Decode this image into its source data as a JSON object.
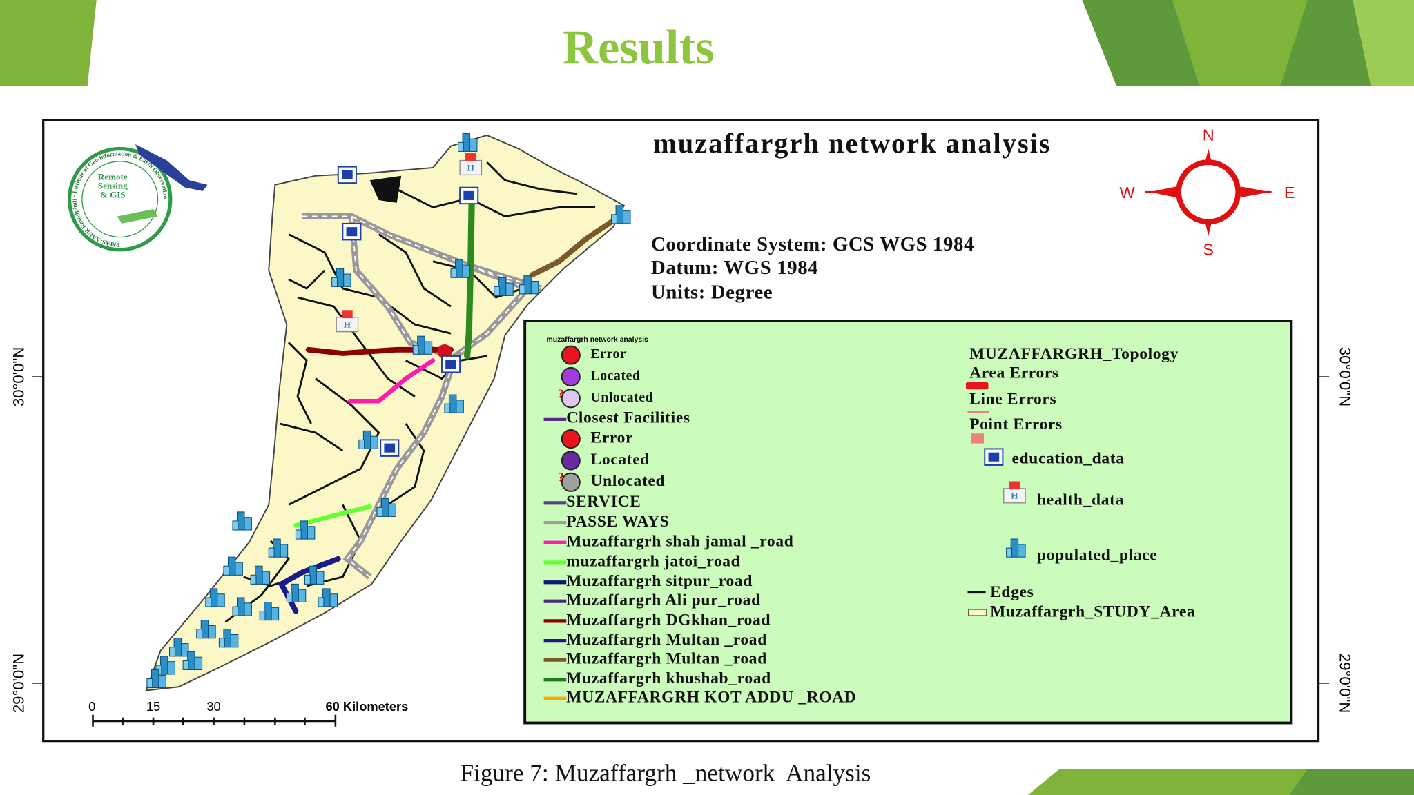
{
  "slide": {
    "title": "Results",
    "caption": "Figure 7: Muzaffargrh _network  Analysis"
  },
  "map": {
    "title": "muzaffargrh network analysis",
    "coordinate_info": [
      "Coordinate System: GCS WGS 1984",
      "Datum: WGS 1984",
      "Units: Degree"
    ],
    "compass": {
      "north": "N",
      "east": "E",
      "south": "S",
      "west": "W"
    },
    "latitude_labels": [
      "30°0'0\"N",
      "29°0'0\"N"
    ],
    "scale_bar": [
      "0",
      "15",
      "30",
      "60 Kilometers"
    ],
    "logo": {
      "lines": [
        "Remote",
        "Sensing",
        "& GIS"
      ],
      "ring_text": "PMAS-AAUR Rawalpindi · Institute of Geo-information & Earth Observation"
    }
  },
  "legend": {
    "title": "muzaffargrh network analysis",
    "left": [
      "Error",
      "Located",
      "Unlocated",
      "Closest Facilities",
      "Error",
      "Located",
      "Unlocated",
      "SERVICE",
      "PASSE WAYS",
      "Muzaffargrh shah jamal _road",
      "muzaffargrh jatoi_road",
      "Muzaffargrh sitpur_road",
      "Muzaffargrh Ali pur_road",
      "Muzaffargrh DGkhan_road",
      "Muzaffargrh Multan _road",
      "Muzaffargrh Multan _road",
      "Muzaffargrh khushab_road",
      "MUZAFFARGRH KOT ADDU _ROAD"
    ],
    "right": [
      "MUZAFFARGRH_Topology",
      "Area Errors",
      "Line Errors",
      "Point Errors",
      "education_data",
      "health_data",
      "populated_place",
      "Edges",
      "Muzaffargrh_STUDY_Area"
    ]
  }
}
